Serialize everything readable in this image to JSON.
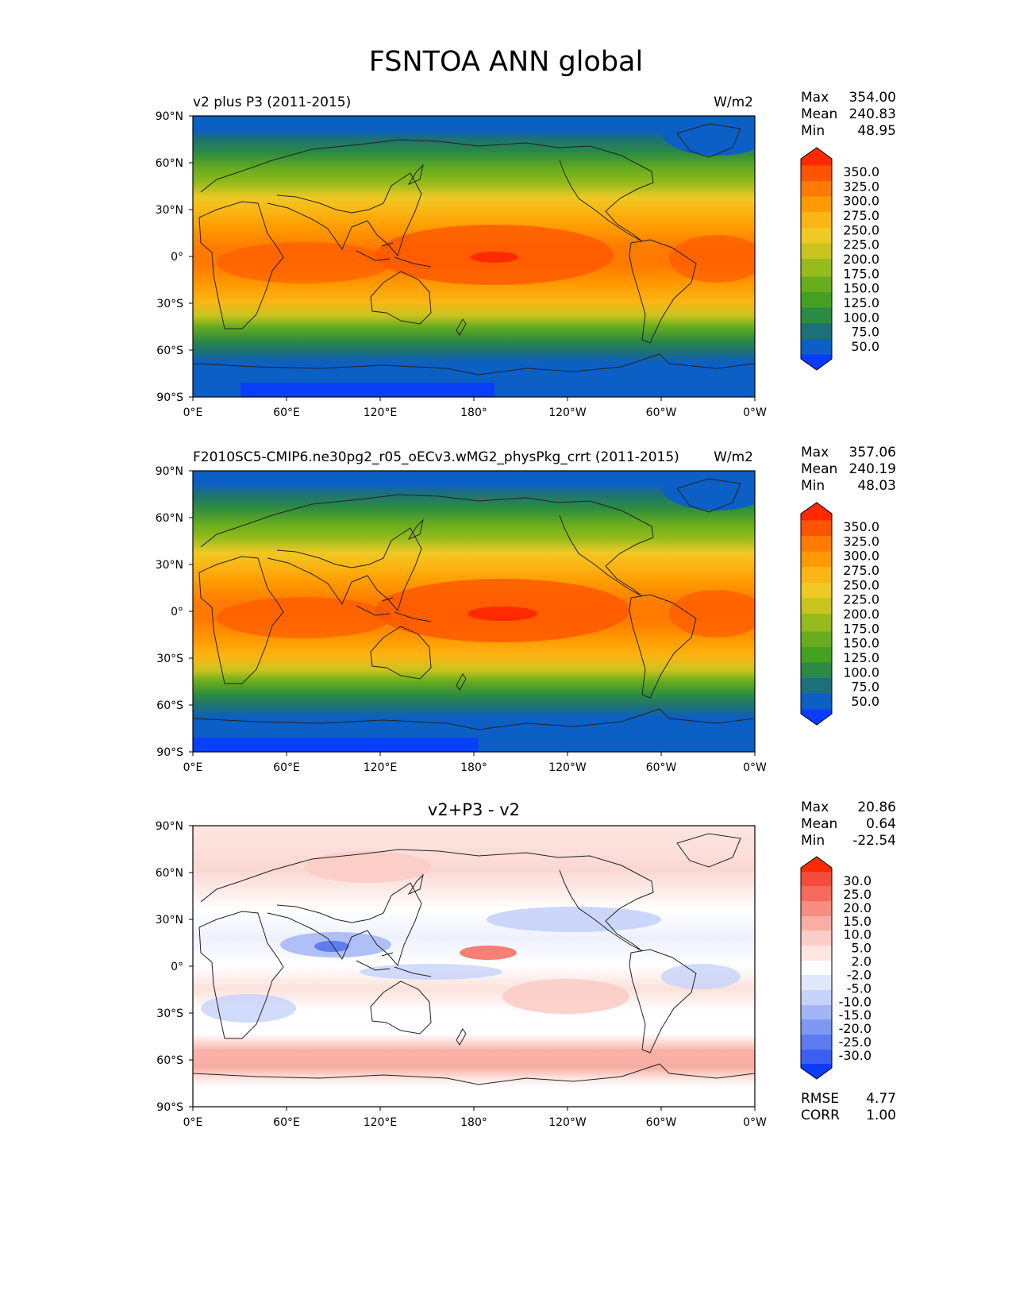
{
  "figure": {
    "title": "FSNTOA ANN global"
  },
  "axes": {
    "lat_labels": [
      "90°N",
      "60°N",
      "30°N",
      "0°",
      "30°S",
      "60°S",
      "90°S"
    ],
    "lon_labels": [
      "0°E",
      "60°E",
      "120°E",
      "180°",
      "120°W",
      "60°W",
      "0°W"
    ]
  },
  "panels": [
    {
      "left_title": "v2 plus P3 (2011-2015)",
      "center_title": "",
      "units": "W/m2",
      "stats": [
        {
          "label": "Max",
          "value": "354.00"
        },
        {
          "label": "Mean",
          "value": "240.83"
        },
        {
          "label": "Min",
          "value": "48.95"
        }
      ],
      "bottom_stats": []
    },
    {
      "left_title": "F2010SC5-CMIP6.ne30pg2_r05_oECv3.wMG2_physPkg_crrt (2011-2015)",
      "center_title": "",
      "units": "W/m2",
      "stats": [
        {
          "label": "Max",
          "value": "357.06"
        },
        {
          "label": "Mean",
          "value": "240.19"
        },
        {
          "label": "Min",
          "value": "48.03"
        }
      ],
      "bottom_stats": []
    },
    {
      "left_title": "",
      "center_title": "v2+P3 - v2",
      "units": "",
      "stats": [
        {
          "label": "Max",
          "value": "20.86"
        },
        {
          "label": "Mean",
          "value": "0.64"
        },
        {
          "label": "Min",
          "value": "-22.54"
        }
      ],
      "bottom_stats": [
        {
          "label": "RMSE",
          "value": "4.77"
        },
        {
          "label": "CORR",
          "value": "1.00"
        }
      ]
    }
  ],
  "chart_data": [
    {
      "type": "heatmap",
      "title": "v2 plus P3 (2011-2015)",
      "units": "W/m2",
      "xlim": [
        0,
        360
      ],
      "ylim": [
        -90,
        90
      ],
      "colorbar": {
        "levels": [
          "350.0",
          "325.0",
          "300.0",
          "275.0",
          "250.0",
          "225.0",
          "200.0",
          "175.0",
          "150.0",
          "125.0",
          "100.0",
          "75.0",
          "50.0"
        ],
        "colors": [
          "#ff2a00",
          "#ff5400",
          "#ff7a00",
          "#ff9a00",
          "#fbb514",
          "#efc924",
          "#c9c41f",
          "#96bb1c",
          "#68ad1d",
          "#43a022",
          "#2b8a43",
          "#1d7078",
          "#0c5fc4",
          "#0a3cff"
        ]
      },
      "zonal_profile_lat": [
        90,
        80,
        70,
        60,
        45,
        30,
        15,
        0,
        -15,
        -30,
        -45,
        -60,
        -70,
        -80,
        -90
      ],
      "zonal_profile_value": [
        55,
        80,
        100,
        135,
        190,
        250,
        290,
        310,
        300,
        260,
        185,
        120,
        80,
        65,
        55
      ]
    },
    {
      "type": "heatmap",
      "title": "F2010SC5-CMIP6.ne30pg2_r05_oECv3.wMG2_physPkg_crrt (2011-2015)",
      "units": "W/m2",
      "xlim": [
        0,
        360
      ],
      "ylim": [
        -90,
        90
      ],
      "colorbar": {
        "levels": [
          "350.0",
          "325.0",
          "300.0",
          "275.0",
          "250.0",
          "225.0",
          "200.0",
          "175.0",
          "150.0",
          "125.0",
          "100.0",
          "75.0",
          "50.0"
        ],
        "colors": [
          "#ff2a00",
          "#ff5400",
          "#ff7a00",
          "#ff9a00",
          "#fbb514",
          "#efc924",
          "#c9c41f",
          "#96bb1c",
          "#68ad1d",
          "#43a022",
          "#2b8a43",
          "#1d7078",
          "#0c5fc4",
          "#0a3cff"
        ]
      },
      "zonal_profile_lat": [
        90,
        80,
        70,
        60,
        45,
        30,
        15,
        0,
        -15,
        -30,
        -45,
        -60,
        -70,
        -80,
        -90
      ],
      "zonal_profile_value": [
        55,
        80,
        100,
        132,
        188,
        250,
        292,
        312,
        300,
        258,
        182,
        115,
        78,
        62,
        52
      ]
    },
    {
      "type": "heatmap",
      "title": "v2+P3 - v2",
      "xlim": [
        0,
        360
      ],
      "ylim": [
        -90,
        90
      ],
      "colorbar": {
        "levels": [
          "30.0",
          "25.0",
          "20.0",
          "15.0",
          "10.0",
          "5.0",
          "2.0",
          "-2.0",
          "-5.0",
          "-10.0",
          "-15.0",
          "-20.0",
          "-25.0",
          "-30.0"
        ],
        "colors": [
          "#ff2a00",
          "#f44b3a",
          "#f46a5c",
          "#f78d80",
          "#f9aea4",
          "#fbcdc6",
          "#fde6e2",
          "#ffffff",
          "#e1e8fc",
          "#c5d2fa",
          "#a2b6f6",
          "#7f99f2",
          "#5c7cf0",
          "#3a5ff2",
          "#0c3cff"
        ]
      },
      "zonal_profile_lat": [
        90,
        60,
        30,
        10,
        0,
        -15,
        -30,
        -45,
        -55,
        -65,
        -75,
        -90
      ],
      "zonal_profile_value": [
        3,
        4,
        3,
        -3,
        2,
        3,
        1,
        -1,
        8,
        6,
        0,
        0
      ]
    }
  ]
}
